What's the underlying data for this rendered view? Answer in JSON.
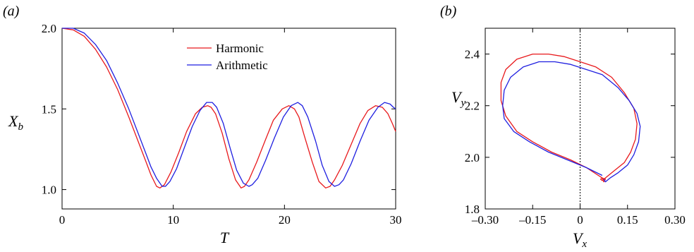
{
  "colors": {
    "harmonic": "#e8191c",
    "arithmetic": "#1f1fe0",
    "axis": "#000000",
    "zero_line": "#000000"
  },
  "chart_data": [
    {
      "panel": "(a)",
      "type": "line",
      "xlabel": "T",
      "ylabel": "X_b",
      "xlim": [
        0,
        30
      ],
      "ylim": [
        0.88,
        2.0
      ],
      "xticks": [
        0,
        10,
        20,
        30
      ],
      "yticks": [
        1.0,
        1.5,
        2.0
      ],
      "xtick_labels": [
        "0",
        "10",
        "20",
        "30"
      ],
      "ytick_labels": [
        "1.0",
        "1.5",
        "2.0"
      ],
      "legend": "top-center",
      "series": [
        {
          "name": "Harmonic",
          "color": "#e8191c",
          "x": [
            0,
            1,
            2,
            3,
            4,
            5,
            6,
            7,
            7.5,
            8,
            8.5,
            8.8,
            9.2,
            9.8,
            10.5,
            11.2,
            12,
            12.6,
            13.1,
            13.4,
            13.8,
            14.4,
            15,
            15.6,
            16.1,
            16.4,
            16.8,
            17.5,
            18.3,
            19,
            19.8,
            20.4,
            20.9,
            21.3,
            21.8,
            22.5,
            23.1,
            23.7,
            24.1,
            24.5,
            25.2,
            26,
            26.8,
            27.5,
            28.2,
            28.8,
            29.3,
            29.7,
            30
          ],
          "y": [
            2.0,
            1.99,
            1.95,
            1.87,
            1.76,
            1.62,
            1.45,
            1.27,
            1.18,
            1.09,
            1.02,
            1.01,
            1.03,
            1.11,
            1.23,
            1.36,
            1.47,
            1.51,
            1.52,
            1.51,
            1.47,
            1.35,
            1.19,
            1.06,
            1.01,
            1.02,
            1.06,
            1.17,
            1.31,
            1.43,
            1.5,
            1.52,
            1.5,
            1.45,
            1.33,
            1.17,
            1.05,
            1.01,
            1.02,
            1.06,
            1.15,
            1.28,
            1.41,
            1.49,
            1.52,
            1.51,
            1.47,
            1.41,
            1.36
          ]
        },
        {
          "name": "Arithmetic",
          "color": "#1f1fe0",
          "x": [
            0,
            1,
            2,
            3,
            4,
            5,
            6,
            7,
            7.5,
            8,
            8.5,
            9,
            9.3,
            9.7,
            10.3,
            11,
            11.7,
            12.4,
            13,
            13.5,
            13.9,
            14.5,
            15.1,
            15.7,
            16.3,
            16.8,
            17.1,
            17.6,
            18.3,
            19.1,
            19.9,
            20.6,
            21.2,
            21.6,
            22.1,
            22.8,
            23.4,
            24,
            24.5,
            24.9,
            25.3,
            26,
            26.8,
            27.6,
            28.4,
            29,
            29.5,
            29.8,
            30
          ],
          "y": [
            2.0,
            2.0,
            1.97,
            1.9,
            1.8,
            1.66,
            1.5,
            1.32,
            1.23,
            1.14,
            1.07,
            1.02,
            1.02,
            1.05,
            1.13,
            1.26,
            1.39,
            1.49,
            1.54,
            1.54,
            1.51,
            1.41,
            1.26,
            1.12,
            1.04,
            1.02,
            1.03,
            1.07,
            1.18,
            1.32,
            1.45,
            1.52,
            1.54,
            1.52,
            1.45,
            1.3,
            1.15,
            1.05,
            1.02,
            1.03,
            1.06,
            1.16,
            1.3,
            1.43,
            1.51,
            1.54,
            1.53,
            1.51,
            1.5
          ]
        }
      ]
    },
    {
      "panel": "(b)",
      "type": "line",
      "xlabel": "V_x",
      "ylabel": "V_y",
      "xlim": [
        -0.3,
        0.3
      ],
      "ylim": [
        1.8,
        2.5
      ],
      "xticks": [
        -0.3,
        -0.15,
        0,
        0.15,
        0.3
      ],
      "yticks": [
        1.8,
        2.0,
        2.2,
        2.4
      ],
      "xtick_labels": [
        "–0.30",
        "–0.15",
        "0",
        "0.15",
        "0.30"
      ],
      "ytick_labels": [
        "1.8",
        "2.0",
        "2.2",
        "2.4"
      ],
      "vline_x": 0,
      "series": [
        {
          "name": "Harmonic",
          "color": "#e8191c",
          "x": [
            0.07,
            0.02,
            -0.03,
            -0.09,
            -0.15,
            -0.2,
            -0.235,
            -0.25,
            -0.25,
            -0.235,
            -0.2,
            -0.15,
            -0.1,
            -0.05,
            0,
            0.05,
            0.1,
            0.14,
            0.17,
            0.18,
            0.175,
            0.16,
            0.14,
            0.11,
            0.085,
            0.07,
            0.065,
            0.07,
            0.08,
            0.075,
            0.07
          ],
          "y": [
            1.92,
            1.96,
            1.99,
            2.02,
            2.06,
            2.1,
            2.16,
            2.22,
            2.29,
            2.34,
            2.38,
            2.4,
            2.4,
            2.39,
            2.37,
            2.35,
            2.31,
            2.25,
            2.19,
            2.13,
            2.07,
            2.02,
            1.98,
            1.95,
            1.925,
            1.91,
            1.915,
            1.92,
            1.915,
            1.905,
            1.92
          ]
        },
        {
          "name": "Arithmetic",
          "color": "#1f1fe0",
          "x": [
            0.07,
            0.02,
            -0.04,
            -0.1,
            -0.16,
            -0.21,
            -0.24,
            -0.245,
            -0.24,
            -0.22,
            -0.18,
            -0.13,
            -0.08,
            -0.03,
            0.02,
            0.07,
            0.12,
            0.155,
            0.18,
            0.19,
            0.185,
            0.17,
            0.15,
            0.12,
            0.095,
            0.08,
            0.075
          ],
          "y": [
            1.93,
            1.96,
            1.99,
            2.02,
            2.06,
            2.1,
            2.15,
            2.2,
            2.26,
            2.31,
            2.35,
            2.37,
            2.37,
            2.36,
            2.34,
            2.32,
            2.27,
            2.22,
            2.17,
            2.12,
            2.06,
            2.01,
            1.97,
            1.94,
            1.92,
            1.905,
            1.915
          ]
        }
      ]
    }
  ]
}
